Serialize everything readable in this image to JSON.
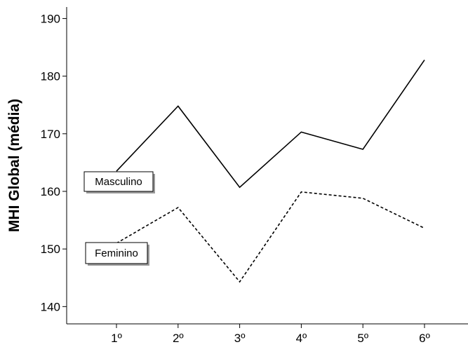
{
  "chart_data": {
    "type": "line",
    "categories": [
      "1º",
      "2º",
      "3º",
      "4º",
      "5º",
      "6º"
    ],
    "series": [
      {
        "name": "Masculino",
        "values": [
          163.5,
          174.8,
          160.7,
          170.3,
          167.3,
          182.8
        ],
        "dash": "solid",
        "color": "#000000"
      },
      {
        "name": "Feminino",
        "values": [
          151.0,
          157.2,
          144.3,
          159.9,
          158.8,
          153.6
        ],
        "dash": "dashed",
        "color": "#000000"
      }
    ],
    "title": "",
    "xlabel": "",
    "ylabel": "MHI Global (média)",
    "ylim": [
      137,
      192
    ],
    "yticks": [
      140,
      150,
      160,
      170,
      180,
      190
    ],
    "grid": false,
    "legend": "inline labels near first point"
  }
}
